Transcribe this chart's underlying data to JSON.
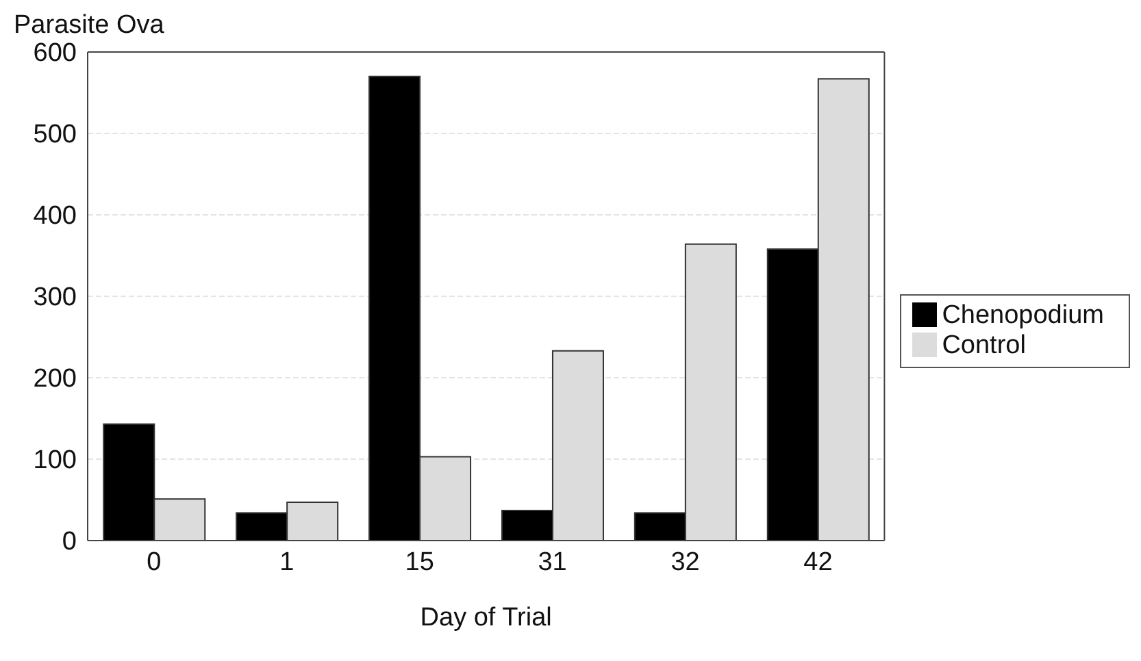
{
  "chart_data": {
    "type": "bar",
    "ylabel": "Parasite Ova",
    "xlabel": "Day of Trial",
    "categories": [
      "0",
      "1",
      "15",
      "31",
      "32",
      "42"
    ],
    "series": [
      {
        "name": "Chenopodium",
        "color": "#000000",
        "values": [
          143,
          34,
          570,
          37,
          34,
          358
        ]
      },
      {
        "name": "Control",
        "color": "#dcdcdc",
        "values": [
          51,
          47,
          103,
          233,
          364,
          567
        ]
      }
    ],
    "ylim": [
      0,
      600
    ],
    "yticks": [
      0,
      100,
      200,
      300,
      400,
      500,
      600
    ],
    "grid": "y",
    "legend": "right"
  }
}
